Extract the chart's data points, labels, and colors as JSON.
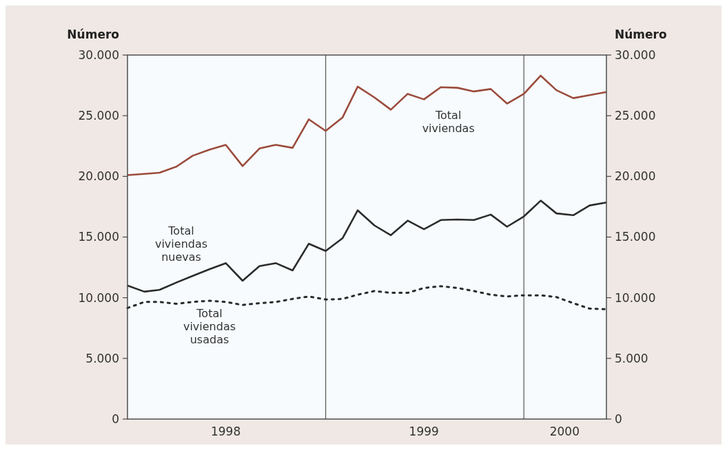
{
  "chart_data": {
    "type": "line",
    "ylabel": "Número",
    "y2label": "Número",
    "x": [
      "1998-01",
      "1998-02",
      "1998-03",
      "1998-04",
      "1998-05",
      "1998-06",
      "1998-07",
      "1998-08",
      "1998-09",
      "1998-10",
      "1998-11",
      "1998-12",
      "1999-01",
      "1999-02",
      "1999-03",
      "1999-04",
      "1999-05",
      "1999-06",
      "1999-07",
      "1999-08",
      "1999-09",
      "1999-10",
      "1999-11",
      "1999-12",
      "2000-01",
      "2000-02",
      "2000-03",
      "2000-04",
      "2000-05",
      "2000-06"
    ],
    "xlim": [
      "1998-01",
      "2000-06"
    ],
    "xticks": [
      {
        "value": "1998-07",
        "label": "1998"
      },
      {
        "value": "1999-07",
        "label": "1999"
      },
      {
        "value": "2000-03-16",
        "label": "2000"
      }
    ],
    "ylim": [
      0,
      30000
    ],
    "yticks": [
      0,
      {
        "value": 5000,
        "label": "5.000"
      },
      {
        "value": 10000,
        "label": "10.000"
      },
      {
        "value": 15000,
        "label": "15.000"
      },
      {
        "value": 20000,
        "label": "20.000"
      },
      {
        "value": 25000,
        "label": "25.000"
      },
      {
        "value": 30000,
        "label": "30.000"
      }
    ],
    "y2lim": [
      0,
      30000
    ],
    "y2ticks": [
      0,
      {
        "value": 5000,
        "label": "5.000"
      },
      {
        "value": 10000,
        "label": "10.000"
      },
      {
        "value": 15000,
        "label": "15.000"
      },
      {
        "value": 20000,
        "label": "20.000"
      },
      {
        "value": 25000,
        "label": "25.000"
      },
      {
        "value": 30000,
        "label": "30.000"
      }
    ],
    "ref_lines": [
      {
        "axis": "x",
        "value": "1999-01",
        "color": "#555555"
      },
      {
        "axis": "x",
        "value": "2000-01",
        "color": "#555555"
      }
    ],
    "grid": false,
    "marker": "none",
    "series": [
      {
        "name": "Total viviendas",
        "color": "#9b4b3c",
        "line_style": "solid",
        "values": [
          20100,
          20200,
          20300,
          20800,
          21700,
          22200,
          22600,
          20850,
          22300,
          22600,
          22350,
          24700,
          23750,
          24850,
          27400,
          26500,
          25500,
          26800,
          26350,
          27350,
          27300,
          27000,
          27200,
          26000,
          26800,
          28300,
          27100,
          26450,
          26700,
          26950
        ]
      },
      {
        "name": "Total viviendas nuevas",
        "color": "#2b2b2b",
        "line_style": "solid",
        "values": [
          11000,
          10500,
          10650,
          11250,
          11800,
          12350,
          12850,
          11400,
          12600,
          12850,
          12250,
          14450,
          13850,
          14900,
          17200,
          15950,
          15150,
          16350,
          15650,
          16400,
          16450,
          16400,
          16850,
          15850,
          16700,
          18000,
          16950,
          16800,
          17600,
          17850
        ]
      },
      {
        "name": "Total viviendas usadas",
        "color": "#2b2b2b",
        "line_style": "dotted",
        "values": [
          9150,
          9650,
          9650,
          9500,
          9650,
          9750,
          9650,
          9400,
          9550,
          9650,
          9900,
          10100,
          9850,
          9900,
          10250,
          10550,
          10400,
          10400,
          10800,
          10950,
          10800,
          10550,
          10250,
          10100,
          10200,
          10200,
          10050,
          9550,
          9100,
          9050
        ]
      }
    ]
  }
}
